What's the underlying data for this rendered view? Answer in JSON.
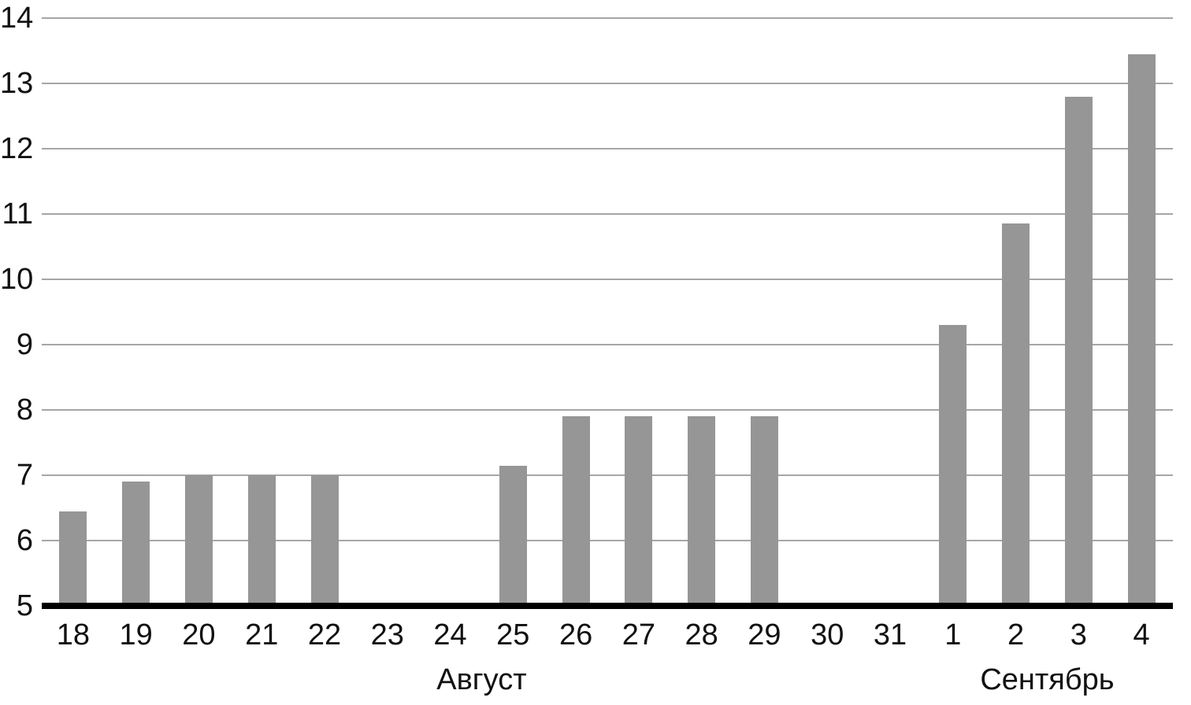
{
  "chart_data": {
    "type": "bar",
    "title": "",
    "xlabel": "",
    "ylabel": "",
    "categories": [
      "18",
      "19",
      "20",
      "21",
      "22",
      "23",
      "24",
      "25",
      "26",
      "27",
      "28",
      "29",
      "30",
      "31",
      "1",
      "2",
      "3",
      "4"
    ],
    "values": [
      6.45,
      6.9,
      7.0,
      7.0,
      7.0,
      null,
      null,
      7.15,
      7.9,
      7.9,
      7.9,
      7.9,
      null,
      null,
      9.3,
      10.85,
      12.8,
      13.45
    ],
    "month_groups": [
      {
        "label": "Август",
        "start_index": 0,
        "end_index": 13
      },
      {
        "label": "Сентябрь",
        "start_index": 14,
        "end_index": 17
      }
    ],
    "ylim": [
      5,
      14
    ],
    "yticks": [
      "5",
      "6",
      "7",
      "8",
      "9",
      "10",
      "11",
      "12",
      "13",
      "14"
    ],
    "grid": "horizontal",
    "legend": "none",
    "bar_color": "#969696",
    "gridline_color": "#a6a6a6",
    "axis_color": "#000000",
    "text_color": "#111111"
  }
}
